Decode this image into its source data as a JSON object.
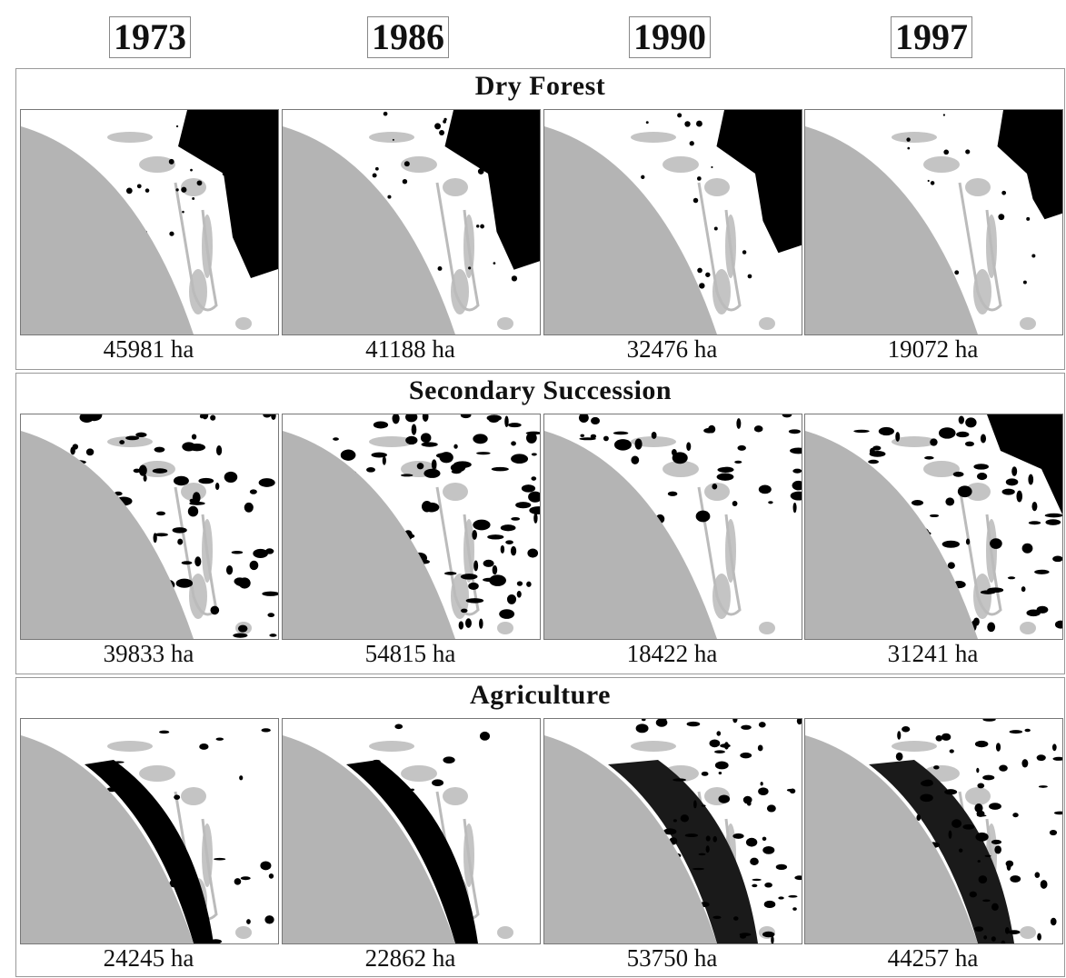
{
  "years": [
    "1973",
    "1986",
    "1990",
    "1997"
  ],
  "rows": [
    {
      "title": "Dry Forest",
      "areas": [
        "45981 ha",
        "41188 ha",
        "32476 ha",
        "19072 ha"
      ]
    },
    {
      "title": "Secondary Succession",
      "areas": [
        "39833 ha",
        "54815 ha",
        "18422 ha",
        "31241 ha"
      ]
    },
    {
      "title": "Agriculture",
      "areas": [
        "24245 ha",
        "22862 ha",
        "53750 ha",
        "44257 ha"
      ]
    }
  ]
}
